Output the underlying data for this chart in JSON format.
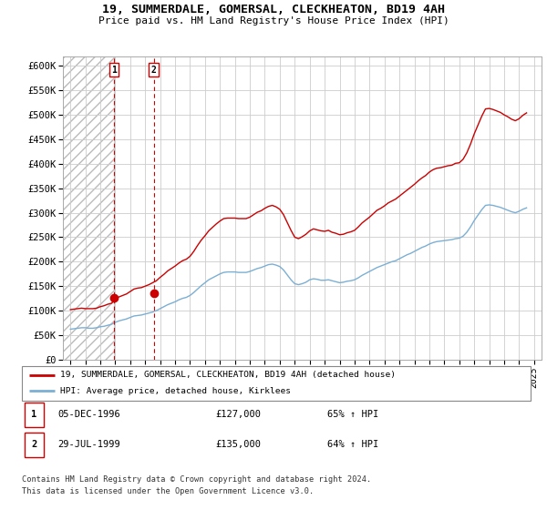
{
  "title": "19, SUMMERDALE, GOMERSAL, CLECKHEATON, BD19 4AH",
  "subtitle": "Price paid vs. HM Land Registry's House Price Index (HPI)",
  "legend_label_red": "19, SUMMERDALE, GOMERSAL, CLECKHEATON, BD19 4AH (detached house)",
  "legend_label_blue": "HPI: Average price, detached house, Kirklees",
  "transactions": [
    {
      "label": "1",
      "date": "05-DEC-1996",
      "price": 127000,
      "hpi_pct": "65% ↑ HPI",
      "x": 1996.92
    },
    {
      "label": "2",
      "date": "29-JUL-1999",
      "price": 135000,
      "hpi_pct": "64% ↑ HPI",
      "x": 1999.57
    }
  ],
  "footnote1": "Contains HM Land Registry data © Crown copyright and database right 2024.",
  "footnote2": "This data is licensed under the Open Government Licence v3.0.",
  "hpi_color": "#7bafd4",
  "price_color": "#cc0000",
  "marker_color": "#cc0000",
  "hatch_color": "#cccccc",
  "ylim": [
    0,
    620000
  ],
  "xlim": [
    1993.5,
    2025.5
  ],
  "yticks": [
    0,
    50000,
    100000,
    150000,
    200000,
    250000,
    300000,
    350000,
    400000,
    450000,
    500000,
    550000,
    600000
  ],
  "ytick_labels": [
    "£0",
    "£50K",
    "£100K",
    "£150K",
    "£200K",
    "£250K",
    "£300K",
    "£350K",
    "£400K",
    "£450K",
    "£500K",
    "£550K",
    "£600K"
  ],
  "xticks": [
    1994,
    1995,
    1996,
    1997,
    1998,
    1999,
    2000,
    2001,
    2002,
    2003,
    2004,
    2005,
    2006,
    2007,
    2008,
    2009,
    2010,
    2011,
    2012,
    2013,
    2014,
    2015,
    2016,
    2017,
    2018,
    2019,
    2020,
    2021,
    2022,
    2023,
    2024,
    2025
  ],
  "hpi_data_x": [
    1994.0,
    1994.25,
    1994.5,
    1994.75,
    1995.0,
    1995.25,
    1995.5,
    1995.75,
    1996.0,
    1996.25,
    1996.5,
    1996.75,
    1997.0,
    1997.25,
    1997.5,
    1997.75,
    1998.0,
    1998.25,
    1998.5,
    1998.75,
    1999.0,
    1999.25,
    1999.5,
    1999.75,
    2000.0,
    2000.25,
    2000.5,
    2000.75,
    2001.0,
    2001.25,
    2001.5,
    2001.75,
    2002.0,
    2002.25,
    2002.5,
    2002.75,
    2003.0,
    2003.25,
    2003.5,
    2003.75,
    2004.0,
    2004.25,
    2004.5,
    2004.75,
    2005.0,
    2005.25,
    2005.5,
    2005.75,
    2006.0,
    2006.25,
    2006.5,
    2006.75,
    2007.0,
    2007.25,
    2007.5,
    2007.75,
    2008.0,
    2008.25,
    2008.5,
    2008.75,
    2009.0,
    2009.25,
    2009.5,
    2009.75,
    2010.0,
    2010.25,
    2010.5,
    2010.75,
    2011.0,
    2011.25,
    2011.5,
    2011.75,
    2012.0,
    2012.25,
    2012.5,
    2012.75,
    2013.0,
    2013.25,
    2013.5,
    2013.75,
    2014.0,
    2014.25,
    2014.5,
    2014.75,
    2015.0,
    2015.25,
    2015.5,
    2015.75,
    2016.0,
    2016.25,
    2016.5,
    2016.75,
    2017.0,
    2017.25,
    2017.5,
    2017.75,
    2018.0,
    2018.25,
    2018.5,
    2018.75,
    2019.0,
    2019.25,
    2019.5,
    2019.75,
    2020.0,
    2020.25,
    2020.5,
    2020.75,
    2021.0,
    2021.25,
    2021.5,
    2021.75,
    2022.0,
    2022.25,
    2022.5,
    2022.75,
    2023.0,
    2023.25,
    2023.5,
    2023.75,
    2024.0,
    2024.25,
    2024.5
  ],
  "hpi_data_y": [
    62000,
    63000,
    64000,
    65000,
    65000,
    64000,
    64000,
    65000,
    67000,
    68000,
    70000,
    72000,
    76000,
    79000,
    81000,
    83000,
    86000,
    89000,
    90000,
    91000,
    93000,
    95000,
    97000,
    100000,
    104000,
    108000,
    112000,
    115000,
    118000,
    122000,
    125000,
    127000,
    131000,
    137000,
    144000,
    151000,
    157000,
    163000,
    167000,
    171000,
    175000,
    178000,
    179000,
    179000,
    179000,
    178000,
    178000,
    178000,
    180000,
    183000,
    186000,
    188000,
    191000,
    194000,
    195000,
    193000,
    190000,
    183000,
    173000,
    163000,
    155000,
    153000,
    155000,
    158000,
    163000,
    165000,
    164000,
    162000,
    162000,
    163000,
    161000,
    159000,
    157000,
    158000,
    160000,
    161000,
    163000,
    167000,
    172000,
    176000,
    180000,
    184000,
    188000,
    191000,
    194000,
    197000,
    200000,
    202000,
    206000,
    210000,
    214000,
    217000,
    221000,
    225000,
    229000,
    232000,
    236000,
    239000,
    241000,
    242000,
    243000,
    244000,
    245000,
    247000,
    248000,
    252000,
    260000,
    271000,
    284000,
    295000,
    306000,
    315000,
    316000,
    315000,
    313000,
    311000,
    308000,
    305000,
    302000,
    300000,
    303000,
    307000,
    310000
  ],
  "price_data_x": [
    1994.0,
    1994.25,
    1994.5,
    1994.75,
    1995.0,
    1995.25,
    1995.5,
    1995.75,
    1996.0,
    1996.25,
    1996.5,
    1996.75,
    1997.0,
    1997.25,
    1997.5,
    1997.75,
    1998.0,
    1998.25,
    1998.5,
    1998.75,
    1999.0,
    1999.25,
    1999.5,
    1999.75,
    2000.0,
    2000.25,
    2000.5,
    2000.75,
    2001.0,
    2001.25,
    2001.5,
    2001.75,
    2002.0,
    2002.25,
    2002.5,
    2002.75,
    2003.0,
    2003.25,
    2003.5,
    2003.75,
    2004.0,
    2004.25,
    2004.5,
    2004.75,
    2005.0,
    2005.25,
    2005.5,
    2005.75,
    2006.0,
    2006.25,
    2006.5,
    2006.75,
    2007.0,
    2007.25,
    2007.5,
    2007.75,
    2008.0,
    2008.25,
    2008.5,
    2008.75,
    2009.0,
    2009.25,
    2009.5,
    2009.75,
    2010.0,
    2010.25,
    2010.5,
    2010.75,
    2011.0,
    2011.25,
    2011.5,
    2011.75,
    2012.0,
    2012.25,
    2012.5,
    2012.75,
    2013.0,
    2013.25,
    2013.5,
    2013.75,
    2014.0,
    2014.25,
    2014.5,
    2014.75,
    2015.0,
    2015.25,
    2015.5,
    2015.75,
    2016.0,
    2016.25,
    2016.5,
    2016.75,
    2017.0,
    2017.25,
    2017.5,
    2017.75,
    2018.0,
    2018.25,
    2018.5,
    2018.75,
    2019.0,
    2019.25,
    2019.5,
    2019.75,
    2020.0,
    2020.25,
    2020.5,
    2020.75,
    2021.0,
    2021.25,
    2021.5,
    2021.75,
    2022.0,
    2022.25,
    2022.5,
    2022.75,
    2023.0,
    2023.25,
    2023.5,
    2023.75,
    2024.0,
    2024.25,
    2024.5
  ],
  "price_data_y": [
    102000,
    103000,
    104000,
    105000,
    104000,
    104000,
    104000,
    105000,
    108000,
    110000,
    113000,
    115000,
    123000,
    128000,
    131000,
    134000,
    139000,
    144000,
    146000,
    147000,
    150000,
    153000,
    157000,
    161000,
    168000,
    174000,
    181000,
    186000,
    191000,
    197000,
    202000,
    205000,
    211000,
    221000,
    233000,
    244000,
    253000,
    263000,
    270000,
    277000,
    283000,
    288000,
    289000,
    289000,
    289000,
    288000,
    288000,
    288000,
    291000,
    296000,
    301000,
    304000,
    309000,
    313000,
    315000,
    312000,
    307000,
    296000,
    280000,
    264000,
    250000,
    247000,
    251000,
    256000,
    263000,
    267000,
    265000,
    263000,
    262000,
    264000,
    260000,
    258000,
    255000,
    256000,
    259000,
    261000,
    264000,
    271000,
    279000,
    285000,
    291000,
    298000,
    305000,
    309000,
    314000,
    320000,
    324000,
    328000,
    334000,
    340000,
    346000,
    352000,
    358000,
    365000,
    371000,
    376000,
    383000,
    388000,
    391000,
    392000,
    394000,
    396000,
    397000,
    401000,
    402000,
    409000,
    422000,
    440000,
    461000,
    479000,
    497000,
    512000,
    513000,
    511000,
    508000,
    505000,
    500000,
    496000,
    491000,
    488000,
    492000,
    499000,
    504000
  ]
}
